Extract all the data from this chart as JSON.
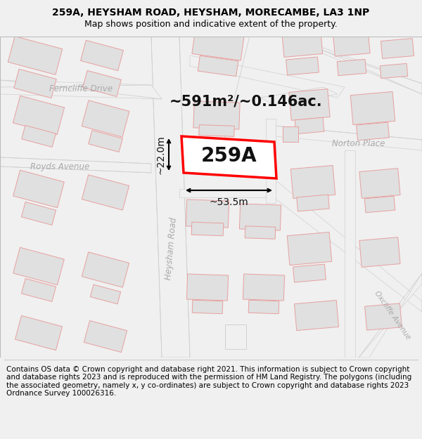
{
  "title_line1": "259A, HEYSHAM ROAD, HEYSHAM, MORECAMBE, LA3 1NP",
  "title_line2": "Map shows position and indicative extent of the property.",
  "footer": "Contains OS data © Crown copyright and database right 2021. This information is subject to Crown copyright and database rights 2023 and is reproduced with the permission of HM Land Registry. The polygons (including the associated geometry, namely x, y co-ordinates) are subject to Crown copyright and database rights 2023 Ordnance Survey 100026316.",
  "area_label": "~591m²/~0.146ac.",
  "width_label": "~53.5m",
  "height_label": "~22.0m",
  "plot_label": "259A",
  "bg_color": "#f0f0f0",
  "map_bg": "#ffffff",
  "building_fill": "#e0e0e0",
  "building_stroke": "#e8a0a0",
  "road_fill": "#f5f5f5",
  "road_stroke": "#e8a0a0",
  "road_center_color": "#d0d0d0",
  "highlight_stroke": "#ff0000",
  "highlight_fill": "#ffffff",
  "street_label_color": "#aaaaaa",
  "dim_color": "#111111",
  "title_color": "#000000",
  "footer_color": "#000000",
  "title_fontsize": 10,
  "subtitle_fontsize": 9,
  "footer_fontsize": 7.5,
  "area_fontsize": 15,
  "plot_label_fontsize": 20,
  "dim_fontsize": 10,
  "street_fontsize": 8.5
}
